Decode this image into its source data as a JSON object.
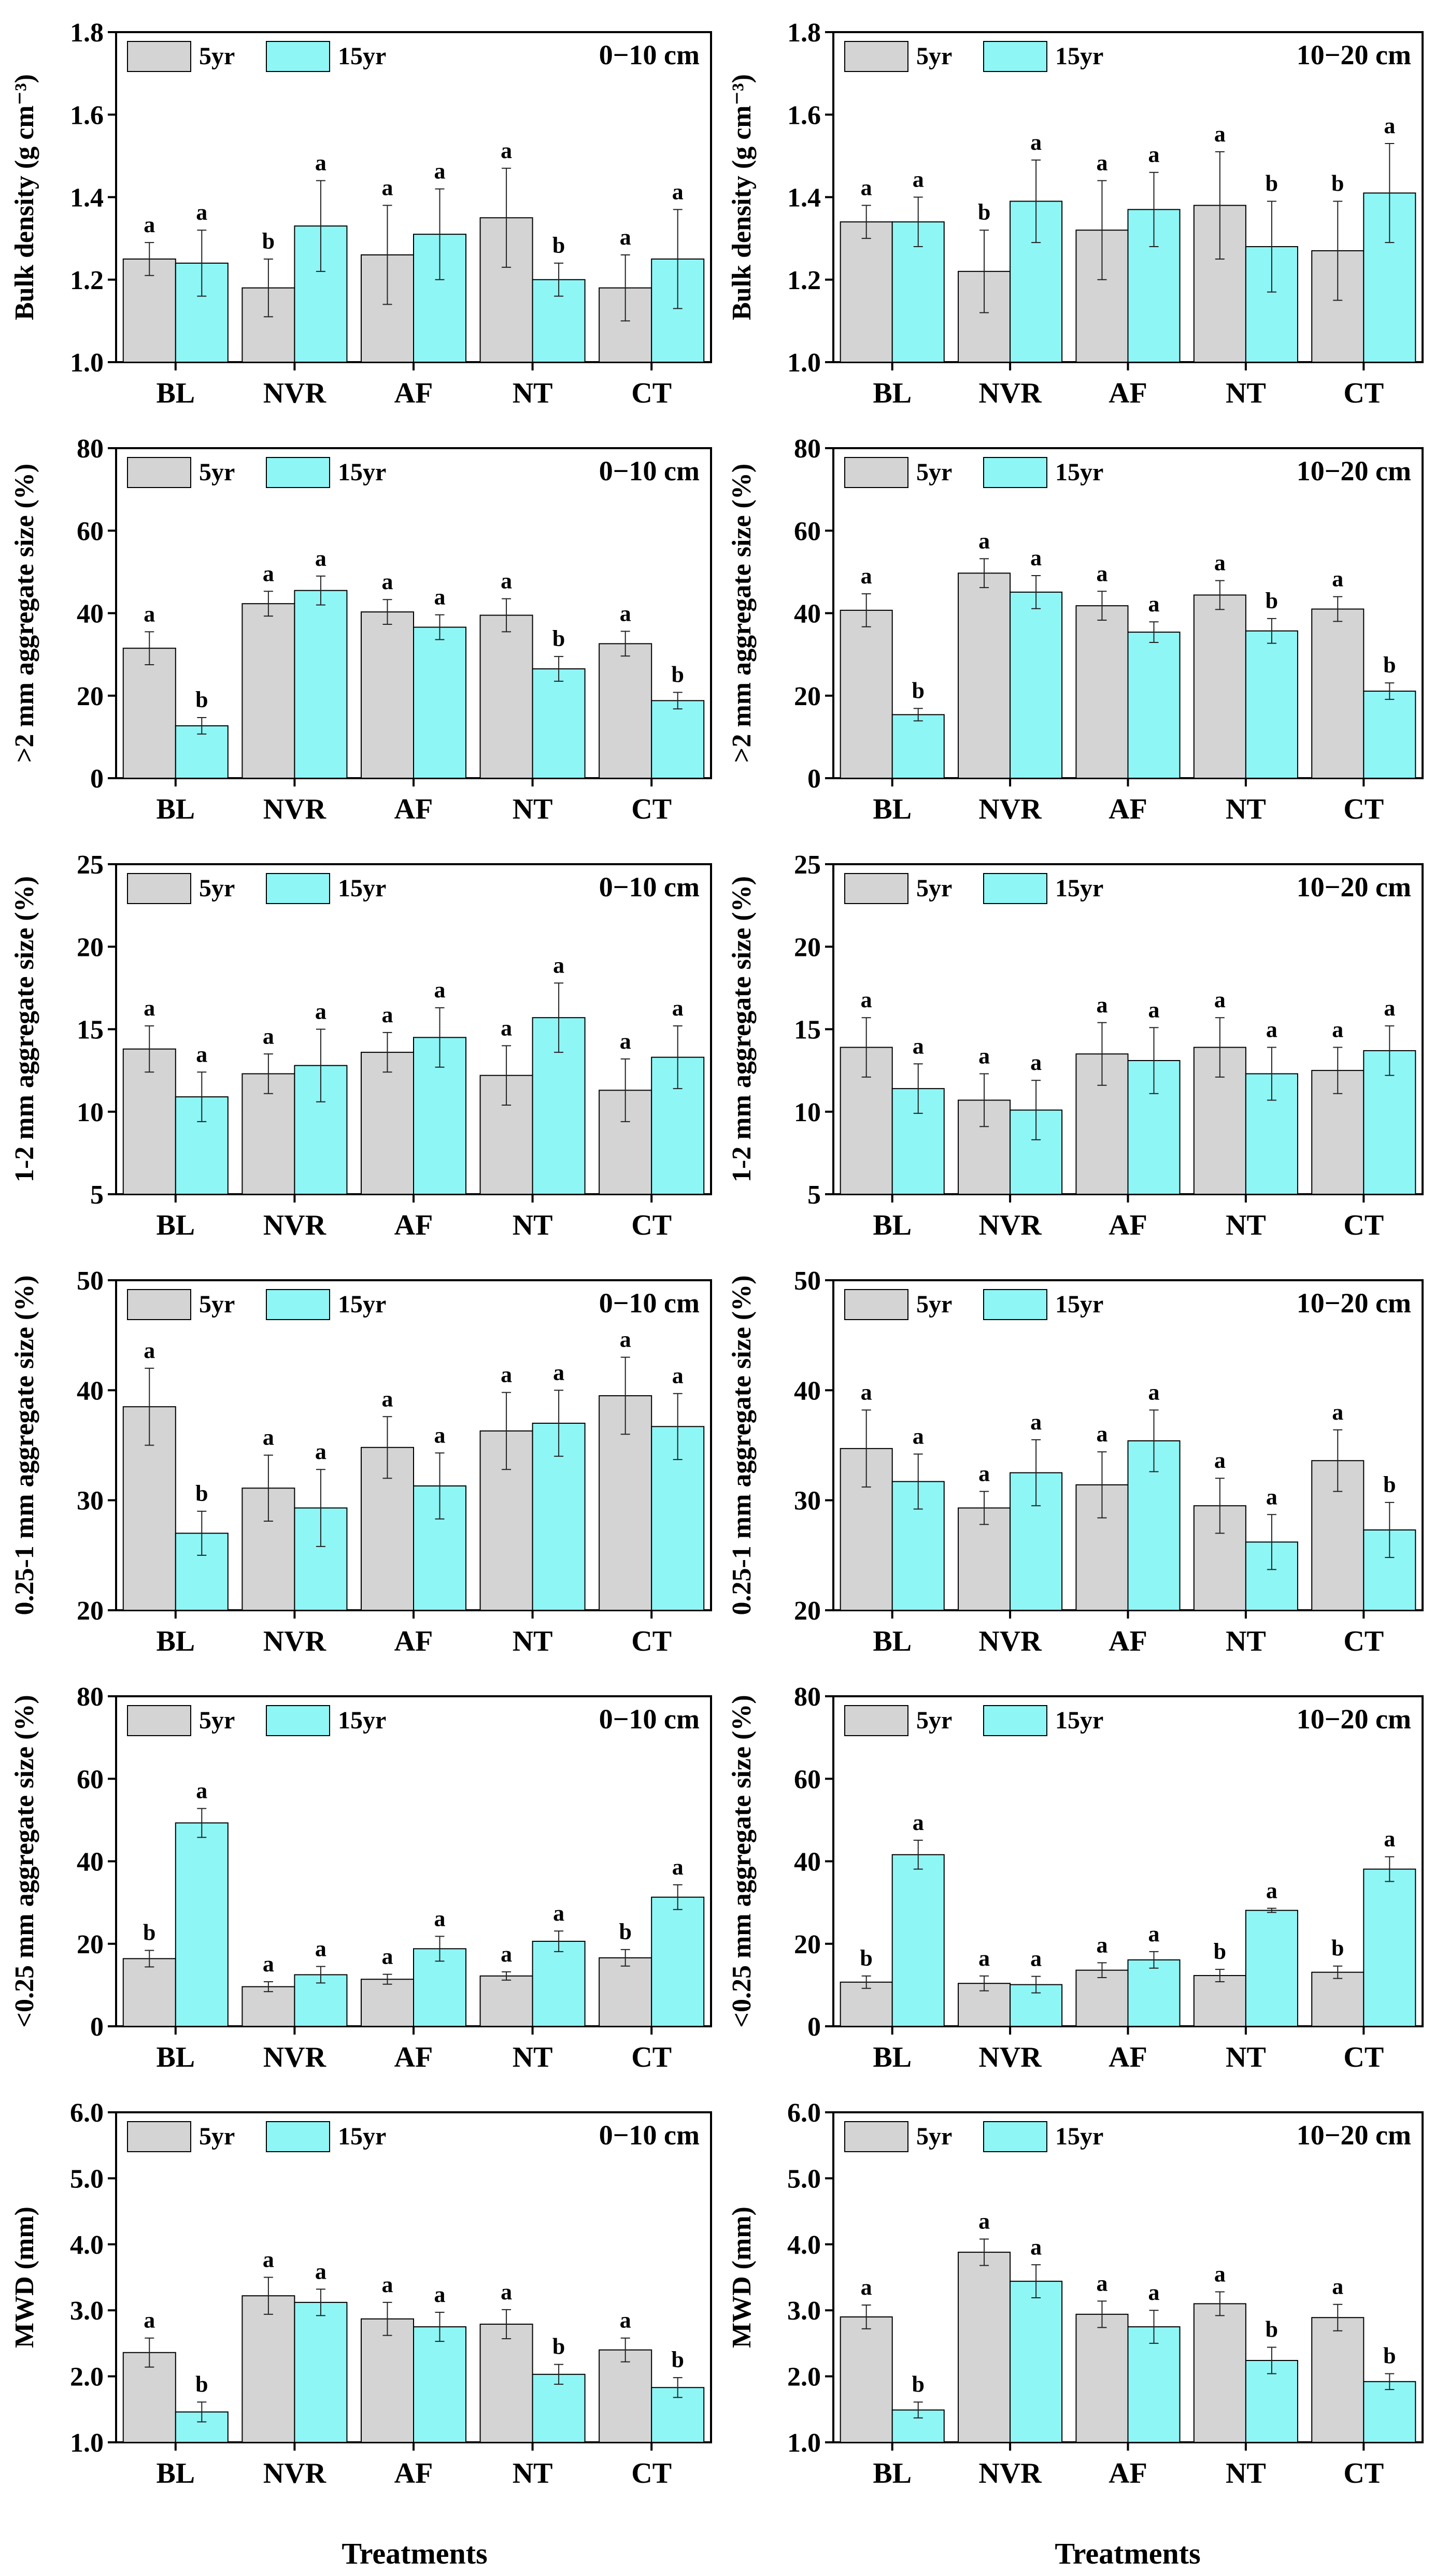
{
  "colors": {
    "series_5yr": "#d4d4d4",
    "series_15yr": "#8ff6f6",
    "edge": "#000000"
  },
  "figure": {
    "x_label": "Treatments"
  },
  "chart_data": [
    {
      "id": "bd-0-10",
      "type": "bar",
      "title": "0−10 cm",
      "ylabel": "Bulk density (g cm⁻³)",
      "ylim": [
        1.0,
        1.8
      ],
      "yticks": [
        "1.0",
        "1.2",
        "1.4",
        "1.6",
        "1.8"
      ],
      "categories": [
        "BL",
        "NVR",
        "AF",
        "NT",
        "CT"
      ],
      "series": [
        {
          "name": "5yr",
          "values": [
            1.25,
            1.18,
            1.26,
            1.35,
            1.18
          ],
          "errors": [
            0.04,
            0.07,
            0.12,
            0.12,
            0.08
          ],
          "letters": [
            "a",
            "b",
            "a",
            "a",
            "a"
          ]
        },
        {
          "name": "15yr",
          "values": [
            1.24,
            1.33,
            1.31,
            1.2,
            1.25
          ],
          "errors": [
            0.08,
            0.11,
            0.11,
            0.04,
            0.12
          ],
          "letters": [
            "a",
            "a",
            "a",
            "b",
            "a"
          ]
        }
      ]
    },
    {
      "id": "bd-10-20",
      "type": "bar",
      "title": "10−20 cm",
      "ylabel": "Bulk density (g cm⁻³)",
      "ylim": [
        1.0,
        1.8
      ],
      "yticks": [
        "1.0",
        "1.2",
        "1.4",
        "1.6",
        "1.8"
      ],
      "categories": [
        "BL",
        "NVR",
        "AF",
        "NT",
        "CT"
      ],
      "series": [
        {
          "name": "5yr",
          "values": [
            1.34,
            1.22,
            1.32,
            1.38,
            1.27
          ],
          "errors": [
            0.04,
            0.1,
            0.12,
            0.13,
            0.12
          ],
          "letters": [
            "a",
            "b",
            "a",
            "a",
            "b"
          ]
        },
        {
          "name": "15yr",
          "values": [
            1.34,
            1.39,
            1.37,
            1.28,
            1.41
          ],
          "errors": [
            0.06,
            0.1,
            0.09,
            0.11,
            0.12
          ],
          "letters": [
            "a",
            "a",
            "a",
            "b",
            "a"
          ]
        }
      ]
    },
    {
      "id": "gt2-0-10",
      "type": "bar",
      "title": "0−10 cm",
      "ylabel": ">2 mm aggregate size (%)",
      "ylim": [
        0,
        80
      ],
      "yticks": [
        "0",
        "20",
        "40",
        "60",
        "80"
      ],
      "categories": [
        "BL",
        "NVR",
        "AF",
        "NT",
        "CT"
      ],
      "series": [
        {
          "name": "5yr",
          "values": [
            31.5,
            42.3,
            40.3,
            39.5,
            32.6
          ],
          "errors": [
            4,
            3,
            3,
            4,
            3
          ],
          "letters": [
            "a",
            "a",
            "a",
            "a",
            "a"
          ]
        },
        {
          "name": "15yr",
          "values": [
            12.7,
            45.5,
            36.6,
            26.5,
            18.8
          ],
          "errors": [
            2,
            3.5,
            3,
            3,
            2
          ],
          "letters": [
            "b",
            "a",
            "a",
            "b",
            "b"
          ]
        }
      ]
    },
    {
      "id": "gt2-10-20",
      "type": "bar",
      "title": "10−20 cm",
      "ylabel": ">2 mm aggregate size (%)",
      "ylim": [
        0,
        80
      ],
      "yticks": [
        "0",
        "20",
        "40",
        "60",
        "80"
      ],
      "categories": [
        "BL",
        "NVR",
        "AF",
        "NT",
        "CT"
      ],
      "series": [
        {
          "name": "5yr",
          "values": [
            40.7,
            49.7,
            41.8,
            44.4,
            41.0
          ],
          "errors": [
            4,
            3.5,
            3.5,
            3.5,
            3
          ],
          "letters": [
            "a",
            "a",
            "a",
            "a",
            "a"
          ]
        },
        {
          "name": "15yr",
          "values": [
            15.4,
            45.1,
            35.4,
            35.7,
            21.1
          ],
          "errors": [
            1.5,
            4,
            2.5,
            3,
            2
          ],
          "letters": [
            "b",
            "a",
            "a",
            "b",
            "b"
          ]
        }
      ]
    },
    {
      "id": "s12-0-10",
      "type": "bar",
      "title": "0−10 cm",
      "ylabel": "1-2 mm aggregate size (%)",
      "ylim": [
        5,
        25
      ],
      "yticks": [
        "5",
        "10",
        "15",
        "20",
        "25"
      ],
      "categories": [
        "BL",
        "NVR",
        "AF",
        "NT",
        "CT"
      ],
      "series": [
        {
          "name": "5yr",
          "values": [
            13.8,
            12.3,
            13.6,
            12.2,
            11.3
          ],
          "errors": [
            1.4,
            1.2,
            1.2,
            1.8,
            1.9
          ],
          "letters": [
            "a",
            "a",
            "a",
            "a",
            "a"
          ]
        },
        {
          "name": "15yr",
          "values": [
            10.9,
            12.8,
            14.5,
            15.7,
            13.3
          ],
          "errors": [
            1.5,
            2.2,
            1.8,
            2.1,
            1.9
          ],
          "letters": [
            "a",
            "a",
            "a",
            "a",
            "a"
          ]
        }
      ]
    },
    {
      "id": "s12-10-20",
      "type": "bar",
      "title": "10−20 cm",
      "ylabel": "1-2 mm aggregate size (%)",
      "ylim": [
        5,
        25
      ],
      "yticks": [
        "5",
        "10",
        "15",
        "20",
        "25"
      ],
      "categories": [
        "BL",
        "NVR",
        "AF",
        "NT",
        "CT"
      ],
      "series": [
        {
          "name": "5yr",
          "values": [
            13.9,
            10.7,
            13.5,
            13.9,
            12.5
          ],
          "errors": [
            1.8,
            1.6,
            1.9,
            1.8,
            1.4
          ],
          "letters": [
            "a",
            "a",
            "a",
            "a",
            "a"
          ]
        },
        {
          "name": "15yr",
          "values": [
            11.4,
            10.1,
            13.1,
            12.3,
            13.7
          ],
          "errors": [
            1.5,
            1.8,
            2,
            1.6,
            1.5
          ],
          "letters": [
            "a",
            "a",
            "a",
            "a",
            "a"
          ]
        }
      ]
    },
    {
      "id": "s025-0-10",
      "type": "bar",
      "title": "0−10 cm",
      "ylabel": "0.25-1 mm aggregate size (%)",
      "ylim": [
        20,
        50
      ],
      "yticks": [
        "20",
        "30",
        "40",
        "50"
      ],
      "categories": [
        "BL",
        "NVR",
        "AF",
        "NT",
        "CT"
      ],
      "series": [
        {
          "name": "5yr",
          "values": [
            38.5,
            31.1,
            34.8,
            36.3,
            39.5
          ],
          "errors": [
            3.5,
            3,
            2.8,
            3.5,
            3.5
          ],
          "letters": [
            "a",
            "a",
            "a",
            "a",
            "a"
          ]
        },
        {
          "name": "15yr",
          "values": [
            27.0,
            29.3,
            31.3,
            37.0,
            36.7
          ],
          "errors": [
            2,
            3.5,
            3,
            3,
            3
          ],
          "letters": [
            "b",
            "a",
            "a",
            "a",
            "a"
          ]
        }
      ]
    },
    {
      "id": "s025-10-20",
      "type": "bar",
      "title": "10−20 cm",
      "ylabel": "0.25-1 mm aggregate size (%)",
      "ylim": [
        20,
        50
      ],
      "yticks": [
        "20",
        "30",
        "40",
        "50"
      ],
      "categories": [
        "BL",
        "NVR",
        "AF",
        "NT",
        "CT"
      ],
      "series": [
        {
          "name": "5yr",
          "values": [
            34.7,
            29.3,
            31.4,
            29.5,
            33.6
          ],
          "errors": [
            3.5,
            1.5,
            3,
            2.5,
            2.8
          ],
          "letters": [
            "a",
            "a",
            "a",
            "a",
            "a"
          ]
        },
        {
          "name": "15yr",
          "values": [
            31.7,
            32.5,
            35.4,
            26.2,
            27.3
          ],
          "errors": [
            2.5,
            3,
            2.8,
            2.5,
            2.5
          ],
          "letters": [
            "a",
            "a",
            "a",
            "a",
            "b"
          ]
        }
      ]
    },
    {
      "id": "lt025-0-10",
      "type": "bar",
      "title": "0−10 cm",
      "ylabel": "<0.25 mm aggregate size (%)",
      "ylim": [
        0,
        80
      ],
      "yticks": [
        "0",
        "20",
        "40",
        "60",
        "80"
      ],
      "categories": [
        "BL",
        "NVR",
        "AF",
        "NT",
        "CT"
      ],
      "series": [
        {
          "name": "5yr",
          "values": [
            16.4,
            9.6,
            11.4,
            12.2,
            16.6
          ],
          "errors": [
            2,
            1.2,
            1.2,
            1,
            2
          ],
          "letters": [
            "b",
            "a",
            "a",
            "a",
            "b"
          ]
        },
        {
          "name": "15yr",
          "values": [
            49.3,
            12.5,
            18.8,
            20.6,
            31.3
          ],
          "errors": [
            3.5,
            2,
            3,
            2.5,
            3
          ],
          "letters": [
            "a",
            "a",
            "a",
            "a",
            "a"
          ]
        }
      ]
    },
    {
      "id": "lt025-10-20",
      "type": "bar",
      "title": "10−20 cm",
      "ylabel": "<0.25 mm aggregate size (%)",
      "ylim": [
        0,
        80
      ],
      "yticks": [
        "0",
        "20",
        "40",
        "60",
        "80"
      ],
      "categories": [
        "BL",
        "NVR",
        "AF",
        "NT",
        "CT"
      ],
      "series": [
        {
          "name": "5yr",
          "values": [
            10.7,
            10.4,
            13.6,
            12.3,
            13.1
          ],
          "errors": [
            1.5,
            1.8,
            1.8,
            1.5,
            1.5
          ],
          "letters": [
            "b",
            "a",
            "a",
            "b",
            "b"
          ]
        },
        {
          "name": "15yr",
          "values": [
            41.6,
            10.1,
            16.1,
            28.1,
            38.1
          ],
          "errors": [
            3.5,
            2,
            2,
            0.5,
            3
          ],
          "letters": [
            "a",
            "a",
            "a",
            "a",
            "a"
          ]
        }
      ]
    },
    {
      "id": "mwd-0-10",
      "type": "bar",
      "title": "0−10 cm",
      "ylabel": "MWD (mm)",
      "ylim": [
        1.0,
        6.0
      ],
      "yticks": [
        "1.0",
        "2.0",
        "3.0",
        "4.0",
        "5.0",
        "6.0"
      ],
      "categories": [
        "BL",
        "NVR",
        "AF",
        "NT",
        "CT"
      ],
      "series": [
        {
          "name": "5yr",
          "values": [
            2.36,
            3.22,
            2.87,
            2.79,
            2.4
          ],
          "errors": [
            0.22,
            0.28,
            0.25,
            0.22,
            0.18
          ],
          "letters": [
            "a",
            "a",
            "a",
            "a",
            "a"
          ]
        },
        {
          "name": "15yr",
          "values": [
            1.46,
            3.12,
            2.75,
            2.03,
            1.83
          ],
          "errors": [
            0.15,
            0.2,
            0.22,
            0.15,
            0.15
          ],
          "letters": [
            "b",
            "a",
            "a",
            "b",
            "b"
          ]
        }
      ]
    },
    {
      "id": "mwd-10-20",
      "type": "bar",
      "title": "10−20 cm",
      "ylabel": "MWD (mm)",
      "ylim": [
        1.0,
        6.0
      ],
      "yticks": [
        "1.0",
        "2.0",
        "3.0",
        "4.0",
        "5.0",
        "6.0"
      ],
      "categories": [
        "BL",
        "NVR",
        "AF",
        "NT",
        "CT"
      ],
      "series": [
        {
          "name": "5yr",
          "values": [
            2.9,
            3.88,
            2.94,
            3.1,
            2.89
          ],
          "errors": [
            0.18,
            0.2,
            0.2,
            0.18,
            0.2
          ],
          "letters": [
            "a",
            "a",
            "a",
            "a",
            "a"
          ]
        },
        {
          "name": "15yr",
          "values": [
            1.49,
            3.44,
            2.75,
            2.24,
            1.92
          ],
          "errors": [
            0.12,
            0.25,
            0.25,
            0.2,
            0.12
          ],
          "letters": [
            "b",
            "a",
            "a",
            "b",
            "b"
          ]
        }
      ]
    }
  ]
}
